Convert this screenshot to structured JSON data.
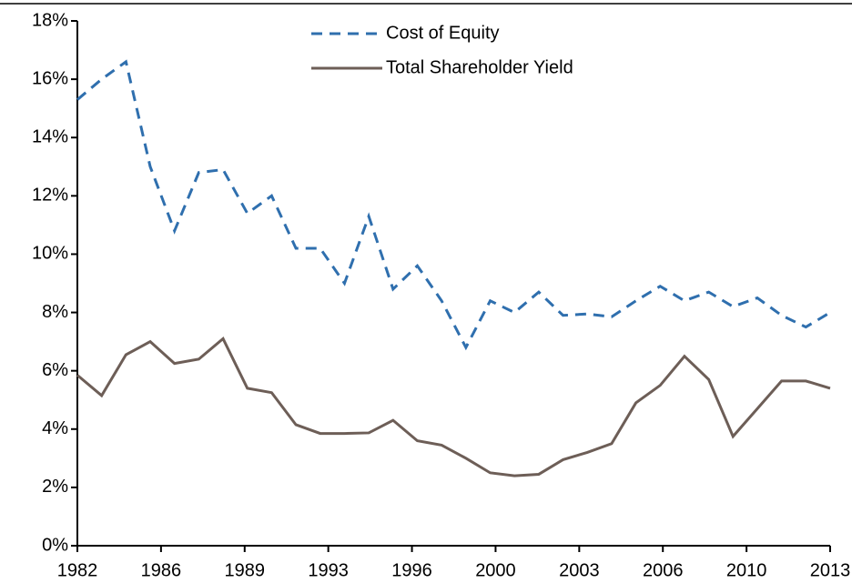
{
  "chart_data": {
    "type": "line",
    "x": [
      1982,
      1983,
      1984,
      1985,
      1986,
      1987,
      1988,
      1989,
      1990,
      1991,
      1992,
      1993,
      1994,
      1995,
      1996,
      1997,
      1998,
      1999,
      2000,
      2001,
      2002,
      2003,
      2004,
      2005,
      2006,
      2007,
      2008,
      2009,
      2010,
      2011,
      2012,
      2013
    ],
    "series": [
      {
        "name": "Cost of Equity",
        "color": "#2f6fae",
        "dash": true,
        "values": [
          15.3,
          16.0,
          16.6,
          13.0,
          10.8,
          12.8,
          12.9,
          11.4,
          12.0,
          10.2,
          10.2,
          9.0,
          11.3,
          8.8,
          9.6,
          8.4,
          6.8,
          8.4,
          8.0,
          8.7,
          7.9,
          7.95,
          7.85,
          8.4,
          8.9,
          8.4,
          8.7,
          8.2,
          8.5,
          7.9,
          7.5,
          8.0
        ]
      },
      {
        "name": "Total Shareholder Yield",
        "color": "#6d5e57",
        "dash": false,
        "values": [
          5.85,
          5.15,
          6.55,
          7.0,
          6.25,
          6.4,
          7.1,
          5.4,
          5.25,
          4.15,
          3.85,
          3.85,
          3.87,
          4.3,
          3.6,
          3.45,
          3.0,
          2.5,
          2.4,
          2.45,
          2.95,
          3.2,
          3.5,
          4.9,
          5.5,
          6.5,
          5.7,
          3.75,
          4.7,
          5.65,
          5.65,
          5.4
        ]
      }
    ],
    "xlim": [
      1982,
      2013
    ],
    "xticks": [
      {
        "value": 1982,
        "label": "1982"
      },
      {
        "value": 1985.444,
        "label": "1986"
      },
      {
        "value": 1988.889,
        "label": "1989"
      },
      {
        "value": 1992.333,
        "label": "1993"
      },
      {
        "value": 1995.778,
        "label": "1996"
      },
      {
        "value": 1999.222,
        "label": "2000"
      },
      {
        "value": 2002.667,
        "label": "2003"
      },
      {
        "value": 2006.111,
        "label": "2006"
      },
      {
        "value": 2009.556,
        "label": "2010"
      },
      {
        "value": 2013,
        "label": "2013"
      }
    ],
    "ylim": [
      0,
      18
    ],
    "yticks": [
      {
        "value": 0,
        "label": "0%"
      },
      {
        "value": 2,
        "label": "2%"
      },
      {
        "value": 4,
        "label": "4%"
      },
      {
        "value": 6,
        "label": "6%"
      },
      {
        "value": 8,
        "label": "8%"
      },
      {
        "value": 10,
        "label": "10%"
      },
      {
        "value": 12,
        "label": "12%"
      },
      {
        "value": 14,
        "label": "14%"
      },
      {
        "value": 16,
        "label": "16%"
      },
      {
        "value": 18,
        "label": "18%"
      }
    ],
    "grid": false,
    "legend": "top"
  }
}
